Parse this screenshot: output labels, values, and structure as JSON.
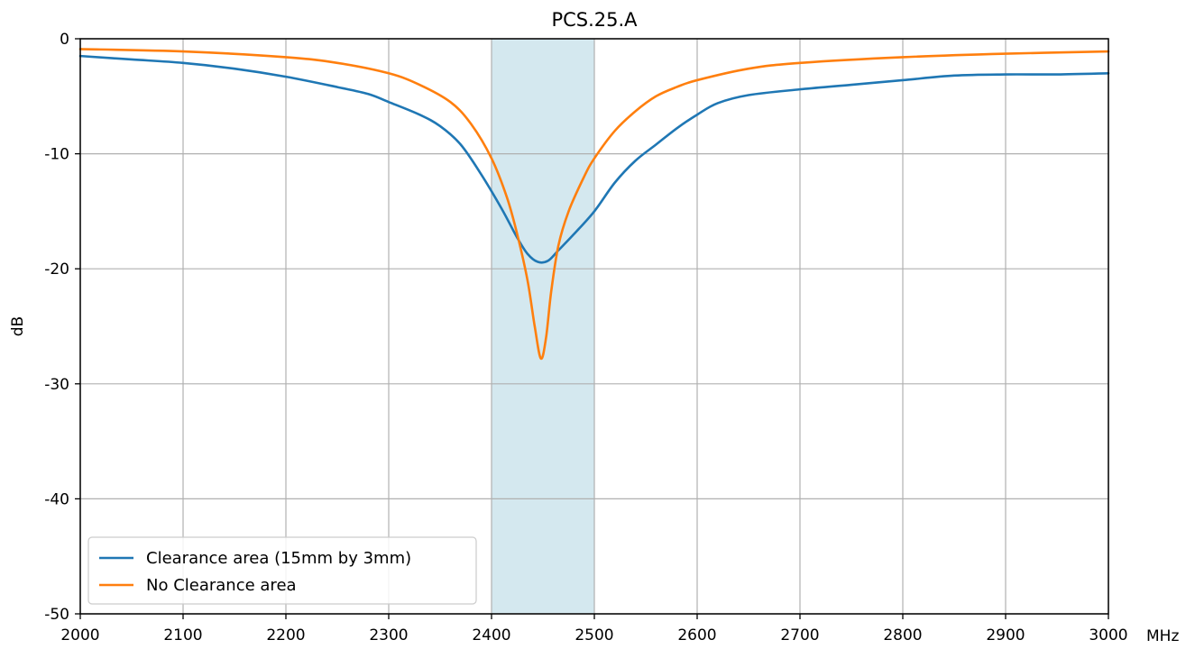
{
  "chart_data": {
    "type": "line",
    "title": "PCS.25.A",
    "xlabel": "",
    "ylabel": "dB",
    "x_unit": "MHz",
    "xlim": [
      2000,
      3000
    ],
    "ylim": [
      -50,
      0
    ],
    "x_ticks": [
      "2000",
      "2100",
      "2200",
      "2300",
      "2400",
      "2500",
      "2600",
      "2700",
      "2800",
      "2900",
      "3000"
    ],
    "y_ticks": [
      "0",
      "-10",
      "-20",
      "-30",
      "-40",
      "-50"
    ],
    "grid": true,
    "legend_position": "lower-left",
    "highlight_band": {
      "x_start": 2400,
      "x_end": 2500,
      "color": "#d4e8ef"
    },
    "series": [
      {
        "name": "Clearance area (15mm by 3mm)",
        "color": "#1f77b4",
        "points": [
          [
            2000,
            -1.5
          ],
          [
            2050,
            -1.8
          ],
          [
            2100,
            -2.1
          ],
          [
            2150,
            -2.6
          ],
          [
            2200,
            -3.3
          ],
          [
            2250,
            -4.2
          ],
          [
            2280,
            -4.8
          ],
          [
            2300,
            -5.5
          ],
          [
            2330,
            -6.6
          ],
          [
            2350,
            -7.6
          ],
          [
            2370,
            -9.2
          ],
          [
            2390,
            -11.8
          ],
          [
            2410,
            -14.8
          ],
          [
            2425,
            -17.3
          ],
          [
            2435,
            -18.7
          ],
          [
            2445,
            -19.4
          ],
          [
            2455,
            -19.3
          ],
          [
            2465,
            -18.4
          ],
          [
            2480,
            -17.0
          ],
          [
            2500,
            -15.0
          ],
          [
            2520,
            -12.5
          ],
          [
            2540,
            -10.6
          ],
          [
            2560,
            -9.2
          ],
          [
            2580,
            -7.8
          ],
          [
            2600,
            -6.6
          ],
          [
            2620,
            -5.6
          ],
          [
            2650,
            -4.9
          ],
          [
            2700,
            -4.4
          ],
          [
            2750,
            -4.0
          ],
          [
            2800,
            -3.6
          ],
          [
            2850,
            -3.2
          ],
          [
            2900,
            -3.1
          ],
          [
            2950,
            -3.1
          ],
          [
            3000,
            -3.0
          ]
        ]
      },
      {
        "name": "No Clearance area",
        "color": "#ff7f0e",
        "points": [
          [
            2000,
            -0.9
          ],
          [
            2100,
            -1.1
          ],
          [
            2200,
            -1.6
          ],
          [
            2250,
            -2.1
          ],
          [
            2300,
            -3.0
          ],
          [
            2330,
            -4.0
          ],
          [
            2360,
            -5.5
          ],
          [
            2380,
            -7.4
          ],
          [
            2400,
            -10.4
          ],
          [
            2415,
            -13.8
          ],
          [
            2425,
            -17.0
          ],
          [
            2435,
            -21.0
          ],
          [
            2442,
            -25.0
          ],
          [
            2448,
            -27.8
          ],
          [
            2453,
            -26.0
          ],
          [
            2458,
            -22.0
          ],
          [
            2465,
            -18.0
          ],
          [
            2475,
            -15.0
          ],
          [
            2490,
            -12.0
          ],
          [
            2500,
            -10.4
          ],
          [
            2520,
            -8.0
          ],
          [
            2540,
            -6.3
          ],
          [
            2560,
            -5.0
          ],
          [
            2580,
            -4.2
          ],
          [
            2600,
            -3.6
          ],
          [
            2650,
            -2.6
          ],
          [
            2700,
            -2.1
          ],
          [
            2800,
            -1.6
          ],
          [
            2900,
            -1.3
          ],
          [
            3000,
            -1.1
          ]
        ]
      }
    ]
  }
}
